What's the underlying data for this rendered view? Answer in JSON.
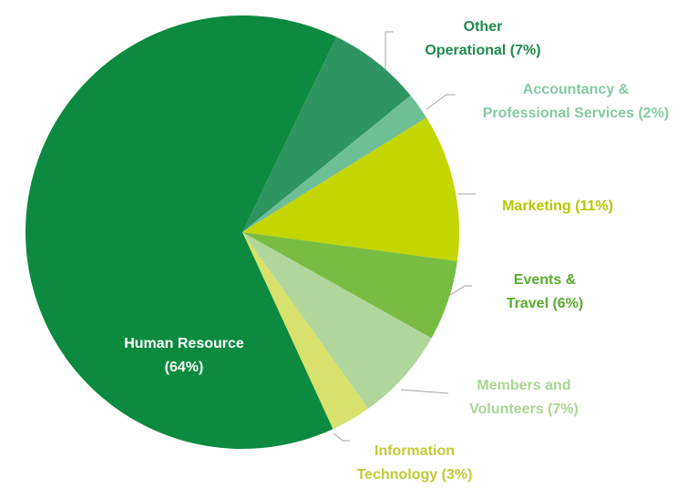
{
  "chart_data": {
    "type": "pie",
    "labels": [
      [
        "Other",
        "Operational (7%)"
      ],
      [
        "Accountancy &",
        "Professional Services (2%)"
      ],
      [
        "Marketing (11%)"
      ],
      [
        "Events &",
        "Travel (6%)"
      ],
      [
        "Members and",
        "Volunteers (7%)"
      ],
      [
        "Information",
        "Technology (3%)"
      ],
      [
        "Human Resource",
        "(64%)"
      ]
    ],
    "values": [
      7,
      2,
      11,
      6,
      7,
      3,
      64
    ],
    "colors": [
      "#2e9462",
      "#6fbf96",
      "#c3d600",
      "#77bd43",
      "#b0d69b",
      "#d8e16b",
      "#0c8a3f"
    ],
    "label_colors": [
      "#1f8a4f",
      "#86c9a5",
      "#b5c700",
      "#5cab2f",
      "#a9d693",
      "#c2cb35",
      "#ffffff"
    ]
  }
}
